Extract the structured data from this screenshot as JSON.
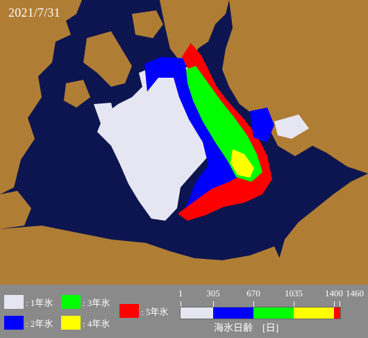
{
  "date": "2021/7/31",
  "colors": {
    "ocean": "#0c154f",
    "land": "#b07d34",
    "ice_1yr": "#e6e6f2",
    "ice_2yr": "#0000ff",
    "ice_3yr": "#00ff00",
    "ice_4yr": "#ffff00",
    "ice_5yr": "#ff0000",
    "legend_bg": "#8a8a8a"
  },
  "legend": {
    "items": [
      {
        "label": ": 1年氷",
        "color": "#e6e6f2"
      },
      {
        "label": ": 2年氷",
        "color": "#0000ff"
      },
      {
        "label": ": 3年氷",
        "color": "#00ff00"
      },
      {
        "label": ": 4年氷",
        "color": "#ffff00"
      },
      {
        "label": ": 5年氷",
        "color": "#ff0000"
      }
    ]
  },
  "colorbar": {
    "title": "海氷日齢　[日]",
    "ticks": [
      "1",
      "305",
      "670",
      "1035",
      "1400",
      "1460"
    ],
    "segments": [
      {
        "color": "#e6e6f2",
        "from": 1,
        "to": 305
      },
      {
        "color": "#0000ff",
        "from": 305,
        "to": 670
      },
      {
        "color": "#00ff00",
        "from": 670,
        "to": 1035
      },
      {
        "color": "#ffff00",
        "from": 1035,
        "to": 1400
      },
      {
        "color": "#ff0000",
        "from": 1400,
        "to": 1460
      }
    ]
  }
}
